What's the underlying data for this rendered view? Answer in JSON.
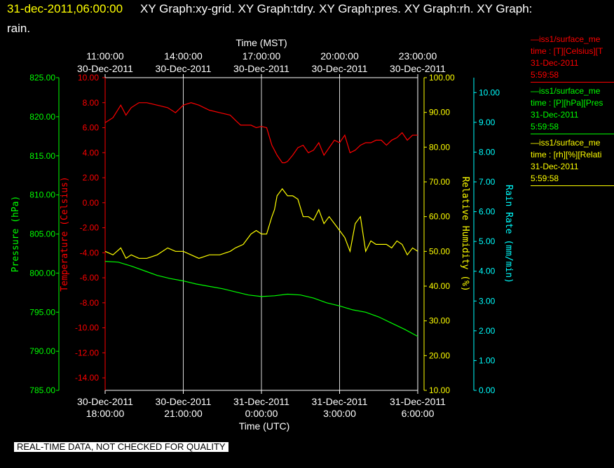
{
  "header": {
    "time": "31-dec-2011,06:00:00",
    "titles": "XY Graph:xy-grid.  XY Graph:tdry.  XY Graph:pres.  XY Graph:rh.  XY Graph:",
    "titles_cont": "rain."
  },
  "footer": "REAL-TIME DATA, NOT CHECKED FOR QUALITY",
  "colors": {
    "temperature": "#ff0000",
    "pressure": "#00ff00",
    "humidity": "#ffff00",
    "rain": "#00ffff",
    "grid": "#ffffff"
  },
  "legend": [
    {
      "line1": "—iss1/surface_me",
      "line2": "time : [T][Celsius][T",
      "date": "31-Dec-2011",
      "time": "5:59:58",
      "color": "#ff0000"
    },
    {
      "line1": "—iss1/surface_me",
      "line2": "time : [P][hPa][Pres",
      "date": "31-Dec-2011",
      "time": "5:59:58",
      "color": "#00ff00"
    },
    {
      "line1": "—iss1/surface_me",
      "line2": "time : [rh][%][Relati",
      "date": "31-Dec-2011",
      "time": "5:59:58",
      "color": "#ffff00"
    }
  ],
  "chart_data": {
    "type": "line",
    "x_top": {
      "label": "Time (MST)",
      "ticks": [
        {
          "time": "11:00:00",
          "date": "30-Dec-2011"
        },
        {
          "time": "14:00:00",
          "date": "30-Dec-2011"
        },
        {
          "time": "17:00:00",
          "date": "30-Dec-2011"
        },
        {
          "time": "20:00:00",
          "date": "30-Dec-2011"
        },
        {
          "time": "23:00:00",
          "date": "30-Dec-2011"
        }
      ]
    },
    "x_bottom": {
      "label": "Time (UTC)",
      "range": [
        "30-Dec-2011 18:00:00",
        "31-Dec-2011 06:00:00"
      ],
      "ticks": [
        {
          "date": "30-Dec-2011",
          "time": "18:00:00"
        },
        {
          "date": "30-Dec-2011",
          "time": "21:00:00"
        },
        {
          "date": "31-Dec-2011",
          "time": "0:00:00"
        },
        {
          "date": "31-Dec-2011",
          "time": "3:00:00"
        },
        {
          "date": "31-Dec-2011",
          "time": "6:00:00"
        }
      ]
    },
    "axes": {
      "pressure": {
        "label": "Pressure (hPa)",
        "min": 785,
        "max": 825,
        "ticks": [
          "825.00",
          "820.00",
          "815.00",
          "810.00",
          "805.00",
          "800.00",
          "795.00",
          "790.00",
          "785.00"
        ]
      },
      "temperature": {
        "label": "Temperature (Celsius)",
        "min": -15,
        "max": 10,
        "ticks": [
          "10.00",
          "8.00",
          "6.00",
          "4.00",
          "2.00",
          "0.00",
          "-2.00",
          "-4.00",
          "-6.00",
          "-8.00",
          "-10.00",
          "-12.00",
          "-14.00"
        ]
      },
      "humidity": {
        "label": "Relative Humidity (%)",
        "min": 10,
        "max": 100,
        "ticks": [
          "100.00",
          "90.00",
          "80.00",
          "70.00",
          "60.00",
          "50.00",
          "40.00",
          "30.00",
          "20.00",
          "10.00"
        ]
      },
      "rain": {
        "label": "Rain Rate (mm/min)",
        "min": 0,
        "max": 10.5,
        "ticks": [
          "10.00",
          "9.00",
          "8.00",
          "7.00",
          "6.00",
          "5.00",
          "4.00",
          "3.00",
          "2.00",
          "1.00",
          "0.00"
        ]
      }
    },
    "grid": true,
    "series": [
      {
        "name": "iss1/surface_met time : [T][Celsius]",
        "axis": "temperature",
        "x_hours": [
          0,
          0.3,
          0.6,
          0.8,
          1.0,
          1.3,
          1.6,
          2.0,
          2.4,
          2.7,
          3.0,
          3.3,
          3.6,
          4.0,
          4.4,
          4.8,
          5.0,
          5.2,
          5.4,
          5.6,
          5.8,
          6.0,
          6.2,
          6.4,
          6.5,
          6.6,
          6.8,
          6.9,
          7.0,
          7.2,
          7.4,
          7.6,
          7.8,
          8.0,
          8.2,
          8.4,
          8.6,
          8.8,
          9.0,
          9.2,
          9.4,
          9.6,
          9.8,
          10.0,
          10.2,
          10.4,
          10.6,
          10.8,
          11.0,
          11.2,
          11.4,
          11.6,
          11.8,
          12.0
        ],
        "values": [
          6.4,
          6.8,
          7.8,
          7.0,
          7.6,
          8.0,
          8.0,
          7.8,
          7.6,
          7.2,
          7.8,
          8.0,
          7.8,
          7.4,
          7.2,
          7.0,
          6.6,
          6.2,
          6.2,
          6.2,
          6.0,
          6.1,
          6.0,
          4.6,
          4.2,
          3.8,
          3.2,
          3.2,
          3.3,
          3.8,
          4.4,
          4.6,
          4.0,
          4.2,
          4.8,
          3.8,
          4.4,
          5.0,
          4.8,
          5.4,
          4.0,
          4.2,
          4.6,
          4.8,
          4.8,
          5.0,
          5.0,
          4.6,
          5.0,
          5.2,
          5.6,
          5.0,
          5.4,
          5.4
        ]
      },
      {
        "name": "iss1/surface_met time : [P][hPa]",
        "axis": "pressure",
        "x_hours": [
          0,
          0.5,
          1,
          1.5,
          2,
          2.5,
          3,
          3.5,
          4,
          4.5,
          5,
          5.5,
          6,
          6.5,
          7,
          7.5,
          8,
          8.5,
          9,
          9.5,
          10,
          10.5,
          11,
          11.5,
          12
        ],
        "values": [
          801.5,
          801.4,
          800.9,
          800.3,
          799.7,
          799.3,
          799.0,
          798.6,
          798.3,
          798.0,
          797.6,
          797.2,
          797.0,
          797.1,
          797.3,
          797.2,
          796.8,
          796.2,
          795.8,
          795.3,
          795.0,
          794.4,
          793.6,
          792.8,
          791.9
        ]
      },
      {
        "name": "iss1/surface_met time : [rh][%]",
        "axis": "humidity",
        "x_hours": [
          0,
          0.3,
          0.6,
          0.8,
          1.0,
          1.3,
          1.6,
          2.0,
          2.4,
          2.7,
          3.0,
          3.3,
          3.6,
          4.0,
          4.4,
          4.8,
          5.0,
          5.3,
          5.6,
          5.8,
          6.0,
          6.2,
          6.4,
          6.5,
          6.6,
          6.8,
          7.0,
          7.2,
          7.4,
          7.6,
          7.8,
          8.0,
          8.2,
          8.4,
          8.6,
          8.8,
          9.0,
          9.2,
          9.4,
          9.6,
          9.8,
          10.0,
          10.2,
          10.4,
          10.6,
          10.8,
          11.0,
          11.2,
          11.4,
          11.6,
          11.8,
          12.0
        ],
        "values": [
          50,
          49,
          51,
          48,
          49,
          48,
          48,
          49,
          51,
          50,
          50,
          49,
          48,
          49,
          49,
          50,
          51,
          52,
          55,
          56,
          55,
          55,
          60,
          62,
          66,
          68,
          66,
          66,
          65,
          60,
          60,
          59,
          62,
          58,
          60,
          58,
          56,
          54,
          50,
          58,
          60,
          50,
          53,
          52,
          52,
          52,
          51,
          53,
          52,
          49,
          51,
          50
        ]
      }
    ]
  }
}
